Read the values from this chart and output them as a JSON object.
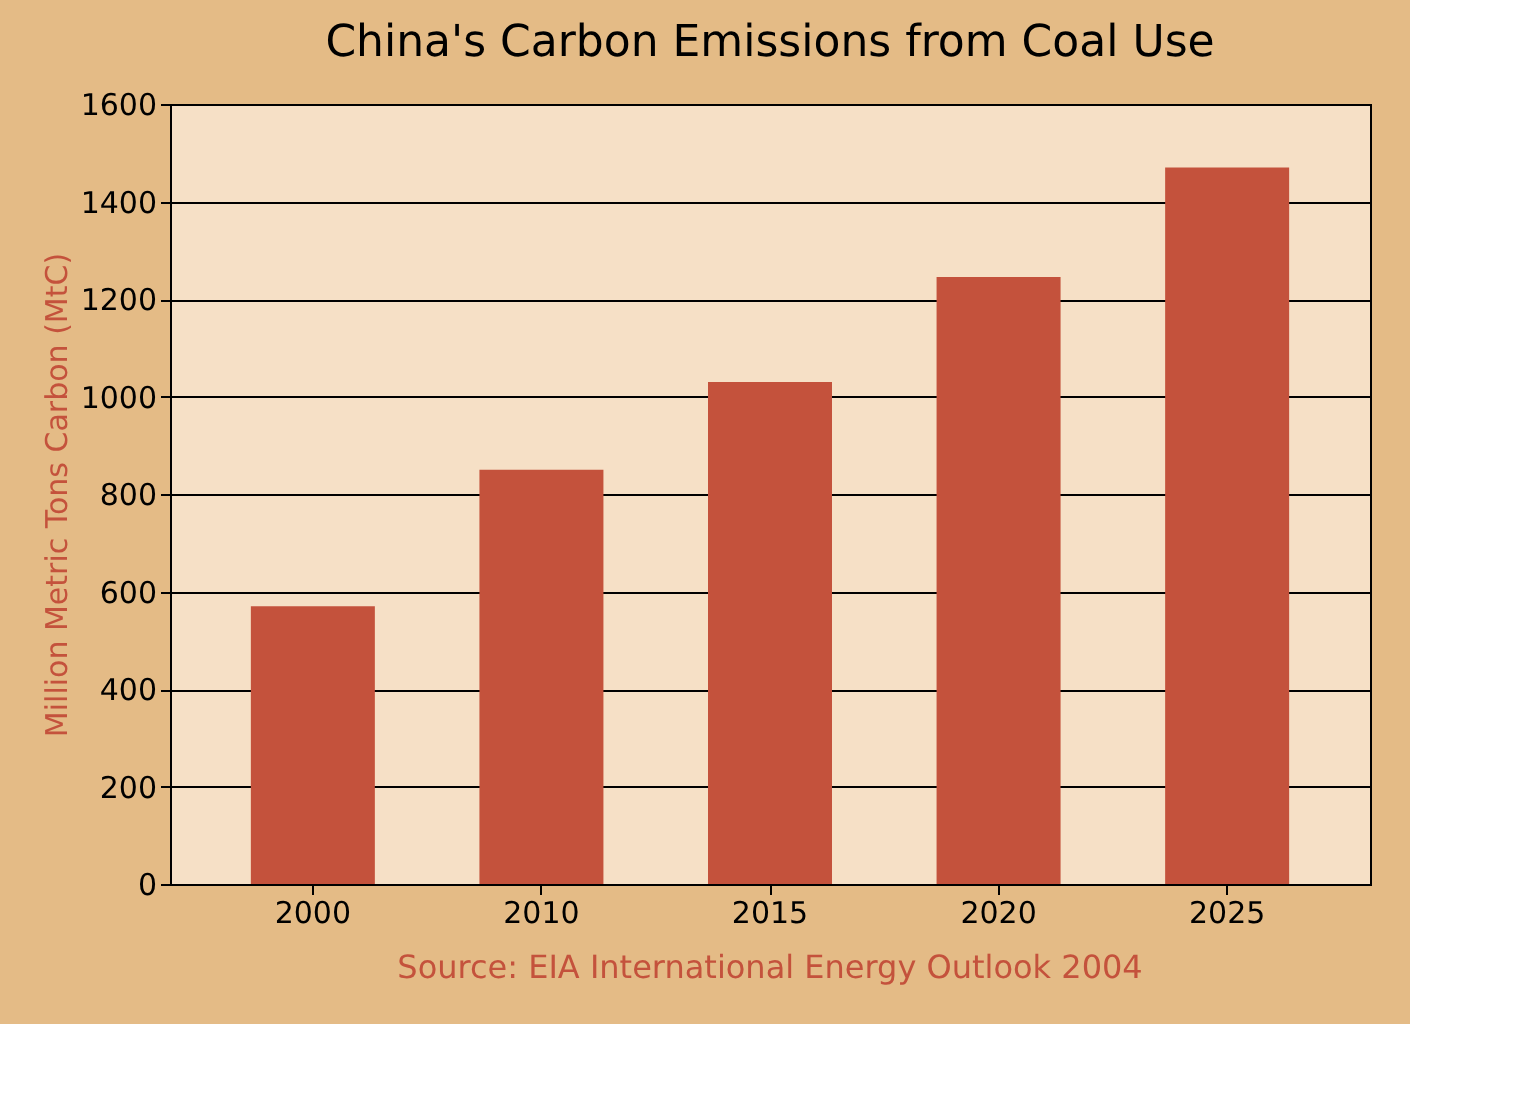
{
  "chart_data": {
    "type": "bar",
    "title": "China's Carbon Emissions from Coal Use",
    "ylabel": "Million Metric Tons Carbon (MtC)",
    "categories": [
      "2000",
      "2010",
      "2015",
      "2020",
      "2025"
    ],
    "values": [
      570,
      850,
      1030,
      1245,
      1470
    ],
    "color": "#c4523c",
    "ylim": [
      0,
      1600
    ],
    "yticks": [
      0,
      200,
      400,
      600,
      800,
      1000,
      1200,
      1400,
      1600
    ],
    "grid": "y",
    "annotations": [
      "Source: EIA International Energy Outlook 2004"
    ]
  }
}
